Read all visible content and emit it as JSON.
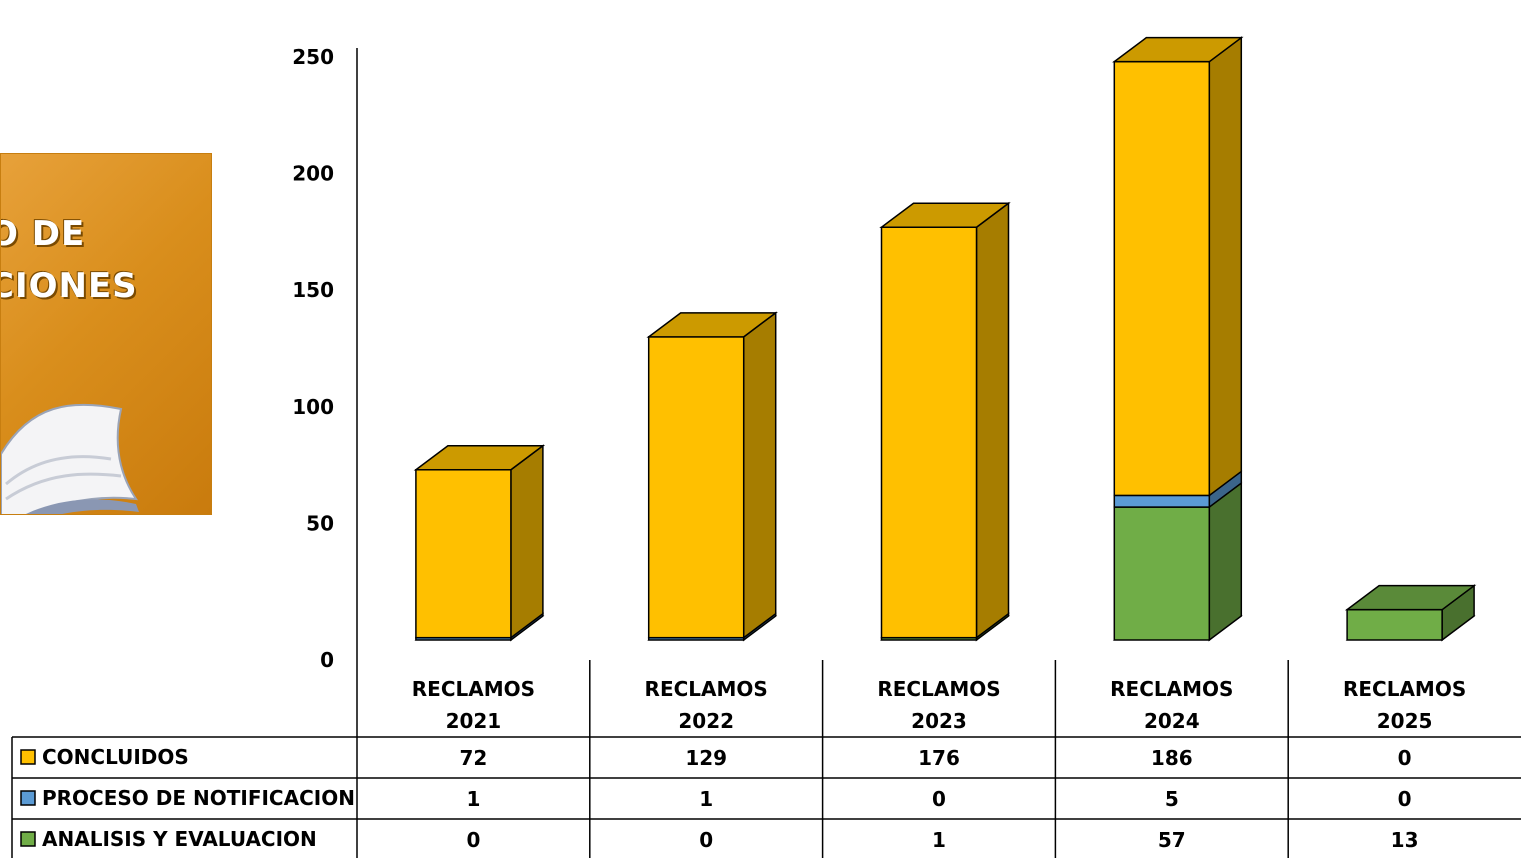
{
  "logo": {
    "line1": "O DE",
    "line2": "CIONES"
  },
  "chart_data": {
    "type": "bar",
    "stacked": true,
    "three_d": true,
    "categories": [
      "RECLAMOS 2021",
      "RECLAMOS 2022",
      "RECLAMOS 2023",
      "RECLAMOS 2024",
      "RECLAMOS 2025"
    ],
    "category_lines": [
      [
        "RECLAMOS",
        "2021"
      ],
      [
        "RECLAMOS",
        "2022"
      ],
      [
        "RECLAMOS",
        "2023"
      ],
      [
        "RECLAMOS",
        "2024"
      ],
      [
        "RECLAMOS",
        "2025"
      ]
    ],
    "series": [
      {
        "name": "CONCLUIDOS",
        "values": [
          72,
          129,
          176,
          186,
          0
        ],
        "color": "#FFC000"
      },
      {
        "name": "PROCESO DE NOTIFICACION",
        "values": [
          1,
          1,
          0,
          5,
          0
        ],
        "color": "#5B9BD5"
      },
      {
        "name": "ANALISIS Y EVALUACION",
        "values": [
          0,
          0,
          1,
          57,
          13
        ],
        "color": "#70AD47"
      }
    ],
    "yticks": [
      0,
      50,
      100,
      150,
      200,
      250
    ],
    "ylim": [
      0,
      250
    ],
    "legend": "data-table",
    "grid": false
  }
}
